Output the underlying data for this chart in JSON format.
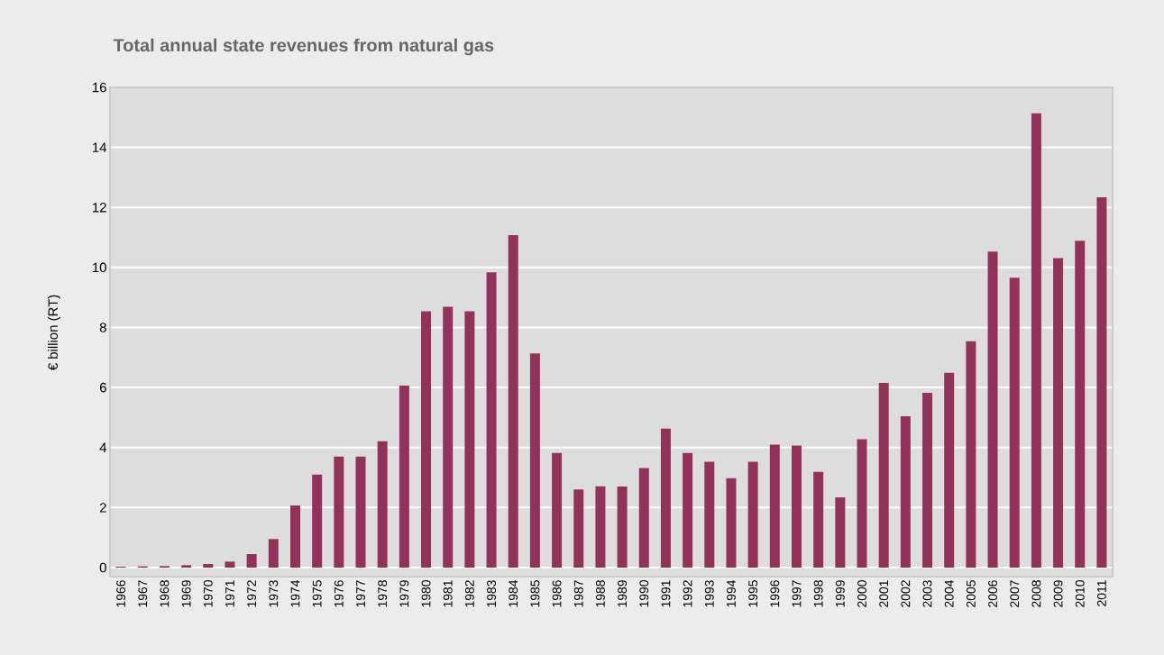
{
  "chart_data": {
    "type": "bar",
    "title": "Total annual state revenues from natural gas",
    "ylabel": "€ billion (RT)",
    "categories": [
      "1966",
      "1967",
      "1968",
      "1969",
      "1970",
      "1971",
      "1972",
      "1973",
      "1974",
      "1975",
      "1976",
      "1977",
      "1978",
      "1979",
      "1980",
      "1981",
      "1982",
      "1983",
      "1984",
      "1985",
      "1986",
      "1987",
      "1988",
      "1989",
      "1990",
      "1991",
      "1992",
      "1993",
      "1994",
      "1995",
      "1996",
      "1997",
      "1998",
      "1999",
      "2000",
      "2001",
      "2002",
      "2003",
      "2004",
      "2005",
      "2006",
      "2007",
      "2008",
      "2009",
      "2010",
      "2011"
    ],
    "values": [
      0.03,
      0.04,
      0.05,
      0.08,
      0.12,
      0.2,
      0.45,
      0.95,
      2.07,
      3.1,
      3.7,
      3.7,
      4.21,
      6.06,
      8.54,
      8.69,
      8.54,
      9.84,
      11.08,
      7.14,
      3.82,
      2.6,
      2.71,
      2.7,
      3.32,
      4.63,
      3.82,
      3.53,
      2.98,
      3.53,
      4.1,
      4.07,
      3.19,
      2.34,
      4.28,
      6.15,
      5.04,
      5.82,
      6.49,
      7.54,
      10.53,
      9.66,
      15.14,
      10.31,
      10.89,
      12.34
    ],
    "color": "#933259",
    "ylim": [
      -0.3,
      16
    ],
    "yticks": [
      0,
      2,
      4,
      6,
      8,
      10,
      12,
      14,
      16
    ],
    "grid": "y"
  }
}
